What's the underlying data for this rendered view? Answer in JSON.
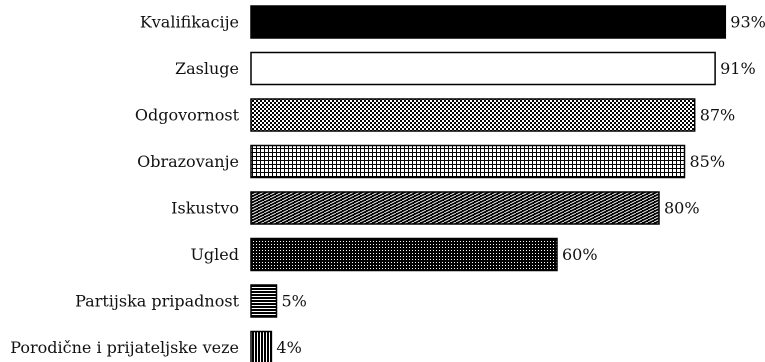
{
  "chart_data": {
    "type": "bar",
    "orientation": "horizontal",
    "title": "",
    "xlabel": "",
    "ylabel": "",
    "xlim": [
      0,
      100
    ],
    "categories": [
      "Kvalifikacije",
      "Zasluge",
      "Odgovornost",
      "Obrazovanje",
      "Iskustvo",
      "Ugled",
      "Partijska pripadnost",
      "Porodične i prijateljske veze"
    ],
    "values": [
      93,
      91,
      87,
      85,
      80,
      60,
      5,
      4
    ],
    "value_labels": [
      "93%",
      "91%",
      "87%",
      "85%",
      "80%",
      "60%",
      "5%",
      "4%"
    ],
    "fills": [
      "solid-black",
      "white",
      "checker",
      "grid",
      "diagonal",
      "dots",
      "horizontal-lines",
      "vertical-lines"
    ],
    "grid": false,
    "legend": "none"
  }
}
